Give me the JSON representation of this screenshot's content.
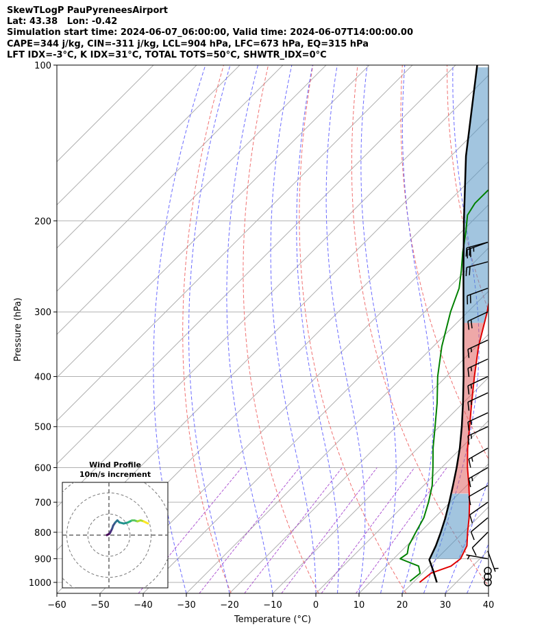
{
  "header": {
    "line1": "SkewTLogP PauPyreneesAirport",
    "line2": "Lat: 43.38   Lon: -0.42",
    "line3": "Simulation start time: 2024-06-07_06:00:00, Valid time: 2024-06-07T14:00:00.00",
    "line4": "CAPE=344 j/kg, CIN=-311 j/kg, LCL=904 hPa, LFC=673 hPa, EQ=315 hPa",
    "line5": "LFT IDX=-3°C, K IDX=31°C, TOTAL TOTS=50°C, SHWTR_IDX=0°C"
  },
  "chart_data": {
    "type": "skewt",
    "xlabel": "Temperature (°C)",
    "ylabel": "Pressure (hPa)",
    "xlim": [
      -60,
      40
    ],
    "ylim": [
      1050,
      100
    ],
    "x_ticks": [
      -60,
      -50,
      -40,
      -30,
      -20,
      -10,
      0,
      10,
      20,
      30,
      40
    ],
    "x_tick_labels": [
      "−60",
      "−50",
      "−40",
      "−30",
      "−20",
      "−10",
      "0",
      "10",
      "20",
      "30",
      "40"
    ],
    "y_ticks": [
      1000,
      900,
      800,
      700,
      600,
      500,
      400,
      300,
      200,
      100
    ],
    "y_tick_labels": [
      "1000",
      "900",
      "800",
      "700",
      "600",
      "500",
      "400",
      "300",
      "200",
      "100"
    ],
    "temperature": {
      "color": "#e00000",
      "pressure": [
        1000,
        960,
        930,
        900,
        850,
        800,
        750,
        700,
        650,
        600,
        550,
        500,
        450,
        400,
        350,
        300,
        270,
        250,
        230,
        210,
        200,
        185,
        175,
        165,
        158,
        150,
        143,
        137,
        130,
        122,
        115,
        108,
        100
      ],
      "values": [
        21.5,
        22,
        25,
        25.5,
        24,
        21,
        18,
        14.5,
        10.5,
        6,
        1.5,
        -3,
        -8,
        -13.5,
        -19.5,
        -25.5,
        -30,
        -33.5,
        -37.5,
        -41,
        -43,
        -43.5,
        -39,
        -36.5,
        -36,
        -34.5,
        -33.5,
        -32.5,
        -31,
        -29,
        -27.5,
        -26,
        -25
      ]
    },
    "dewpoint": {
      "color": "#008000",
      "pressure": [
        995,
        960,
        930,
        900,
        880,
        850,
        800,
        750,
        700,
        650,
        600,
        550,
        500,
        450,
        400,
        350,
        300,
        270,
        250,
        230,
        210,
        195,
        185,
        175,
        165,
        160,
        150,
        140,
        130,
        120,
        110,
        100
      ],
      "values": [
        19,
        19.5,
        17.5,
        11.5,
        12,
        10.5,
        9,
        7.5,
        5,
        2,
        -2,
        -6.5,
        -11,
        -16,
        -22,
        -28,
        -34,
        -37.5,
        -41,
        -45,
        -49,
        -52.5,
        -53.5,
        -53.5,
        -52,
        -53.5,
        -57.5,
        -59.5,
        -56.5,
        -51.5,
        -46.5,
        -41.5
      ]
    },
    "parcel": {
      "color": "#000000",
      "pressure": [
        1000,
        950,
        904,
        850,
        800,
        750,
        700,
        650,
        600,
        550,
        500,
        450,
        400,
        350,
        300,
        250,
        200,
        150,
        100
      ],
      "values": [
        25.5,
        22,
        18.5,
        16.8,
        14.8,
        12.5,
        9.8,
        6.8,
        3.5,
        -0.3,
        -4.8,
        -10,
        -16,
        -23,
        -31,
        -40.5,
        -52,
        -66.5,
        -85
      ]
    },
    "wind_barbs": [
      {
        "pressure": 1000,
        "speed_kt": 0,
        "dir_deg": 0
      },
      {
        "pressure": 975,
        "speed_kt": 0,
        "dir_deg": 0
      },
      {
        "pressure": 950,
        "speed_kt": 0,
        "dir_deg": 0
      },
      {
        "pressure": 900,
        "speed_kt": 5,
        "dir_deg": 280
      },
      {
        "pressure": 870,
        "speed_kt": 5,
        "dir_deg": 160
      },
      {
        "pressure": 800,
        "speed_kt": 10,
        "dir_deg": 225
      },
      {
        "pressure": 750,
        "speed_kt": 10,
        "dir_deg": 230
      },
      {
        "pressure": 700,
        "speed_kt": 10,
        "dir_deg": 235
      },
      {
        "pressure": 650,
        "speed_kt": 10,
        "dir_deg": 240
      },
      {
        "pressure": 600,
        "speed_kt": 15,
        "dir_deg": 240
      },
      {
        "pressure": 550,
        "speed_kt": 15,
        "dir_deg": 240
      },
      {
        "pressure": 500,
        "speed_kt": 15,
        "dir_deg": 245
      },
      {
        "pressure": 470,
        "speed_kt": 15,
        "dir_deg": 245
      },
      {
        "pressure": 430,
        "speed_kt": 15,
        "dir_deg": 245
      },
      {
        "pressure": 400,
        "speed_kt": 15,
        "dir_deg": 245
      },
      {
        "pressure": 370,
        "speed_kt": 15,
        "dir_deg": 245
      },
      {
        "pressure": 340,
        "speed_kt": 15,
        "dir_deg": 245
      },
      {
        "pressure": 300,
        "speed_kt": 20,
        "dir_deg": 245
      },
      {
        "pressure": 270,
        "speed_kt": 20,
        "dir_deg": 250
      },
      {
        "pressure": 240,
        "speed_kt": 20,
        "dir_deg": 255
      },
      {
        "pressure": 220,
        "speed_kt": 20,
        "dir_deg": 255
      },
      {
        "pressure": 220,
        "speed_kt": 25,
        "dir_deg": 250
      }
    ],
    "hodograph": {
      "title": "Wind Profile",
      "subtitle": "10m/s increment",
      "rings_ms": [
        10,
        20,
        30
      ],
      "range_ms": 25,
      "u": [
        -1,
        0,
        0.5,
        1,
        1.5,
        2,
        3,
        4,
        5,
        7,
        9,
        10,
        11,
        12,
        13.5,
        15,
        16.5,
        17.5,
        18.5
      ],
      "v": [
        0,
        0.5,
        1,
        2,
        3,
        4.5,
        6,
        7,
        6,
        5.5,
        6,
        6.5,
        7,
        7,
        6.5,
        7,
        6.5,
        6,
        5.5
      ]
    },
    "isotherms": {
      "color": "#b0b0b0"
    },
    "dry_adiabats": {
      "color": "#f07070",
      "theta_K": [
        250,
        270,
        290,
        310,
        330,
        350,
        370,
        390,
        410,
        430,
        450
      ]
    },
    "moist_adiabats": {
      "color": "#6a6aff",
      "start_temps_C": [
        -30,
        -20,
        -10,
        0,
        5,
        10,
        15,
        20,
        25,
        30,
        35
      ]
    },
    "mixing_ratio": {
      "color": "#9b30c8"
    },
    "cape_fill_color": "#5595c5",
    "cin_fill_color": "#e06060"
  }
}
